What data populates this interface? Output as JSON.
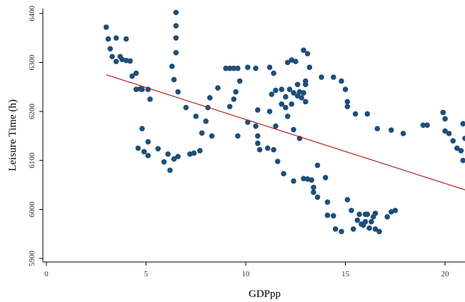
{
  "chart_data": {
    "type": "scatter",
    "title": "",
    "xlabel": "GDPpp",
    "ylabel": "Leisure Time (h)",
    "xlim": [
      0,
      21
    ],
    "ylim": [
      5900,
      6410
    ],
    "x_ticks": [
      0,
      5,
      10,
      15,
      20
    ],
    "y_ticks": [
      5900,
      6000,
      6100,
      6200,
      6300,
      6400
    ],
    "grid": false,
    "legend": "none",
    "colors": {
      "points": "#1f4e79",
      "fit_line": "#b22222",
      "axes": "#000000"
    },
    "fit_line": {
      "x": [
        3,
        21
      ],
      "y": [
        6275,
        6040
      ]
    },
    "points": [
      {
        "x": 3.0,
        "y": 6372
      },
      {
        "x": 3.1,
        "y": 6348
      },
      {
        "x": 3.2,
        "y": 6328
      },
      {
        "x": 3.3,
        "y": 6312
      },
      {
        "x": 3.5,
        "y": 6302
      },
      {
        "x": 3.5,
        "y": 6350
      },
      {
        "x": 3.7,
        "y": 6312
      },
      {
        "x": 3.8,
        "y": 6306
      },
      {
        "x": 4.0,
        "y": 6304
      },
      {
        "x": 4.0,
        "y": 6348
      },
      {
        "x": 4.2,
        "y": 6303
      },
      {
        "x": 4.3,
        "y": 6272
      },
      {
        "x": 4.5,
        "y": 6278
      },
      {
        "x": 4.5,
        "y": 6245
      },
      {
        "x": 4.7,
        "y": 6246
      },
      {
        "x": 4.8,
        "y": 6245
      },
      {
        "x": 5.1,
        "y": 6245
      },
      {
        "x": 5.2,
        "y": 6225
      },
      {
        "x": 4.6,
        "y": 6125
      },
      {
        "x": 4.8,
        "y": 6165
      },
      {
        "x": 4.9,
        "y": 6118
      },
      {
        "x": 5.1,
        "y": 6138
      },
      {
        "x": 5.1,
        "y": 6110
      },
      {
        "x": 5.6,
        "y": 6124
      },
      {
        "x": 5.9,
        "y": 6097
      },
      {
        "x": 6.1,
        "y": 6113
      },
      {
        "x": 6.2,
        "y": 6080
      },
      {
        "x": 6.4,
        "y": 6103
      },
      {
        "x": 6.6,
        "y": 6108
      },
      {
        "x": 7.2,
        "y": 6113
      },
      {
        "x": 7.4,
        "y": 6115
      },
      {
        "x": 7.7,
        "y": 6120
      },
      {
        "x": 6.3,
        "y": 6292
      },
      {
        "x": 6.4,
        "y": 6265
      },
      {
        "x": 6.5,
        "y": 6320
      },
      {
        "x": 6.5,
        "y": 6350
      },
      {
        "x": 6.5,
        "y": 6375
      },
      {
        "x": 6.5,
        "y": 6402
      },
      {
        "x": 6.6,
        "y": 6240
      },
      {
        "x": 7.0,
        "y": 6208
      },
      {
        "x": 7.5,
        "y": 6190
      },
      {
        "x": 7.8,
        "y": 6156
      },
      {
        "x": 8.0,
        "y": 6180
      },
      {
        "x": 8.1,
        "y": 6208
      },
      {
        "x": 8.2,
        "y": 6228
      },
      {
        "x": 8.3,
        "y": 6150
      },
      {
        "x": 8.6,
        "y": 6248
      },
      {
        "x": 9.0,
        "y": 6288
      },
      {
        "x": 9.2,
        "y": 6288
      },
      {
        "x": 9.2,
        "y": 6210
      },
      {
        "x": 9.4,
        "y": 6288
      },
      {
        "x": 9.4,
        "y": 6225
      },
      {
        "x": 9.5,
        "y": 6240
      },
      {
        "x": 9.6,
        "y": 6288
      },
      {
        "x": 9.6,
        "y": 6150
      },
      {
        "x": 9.7,
        "y": 6262
      },
      {
        "x": 10.1,
        "y": 6290
      },
      {
        "x": 10.1,
        "y": 6178
      },
      {
        "x": 10.5,
        "y": 6288
      },
      {
        "x": 10.5,
        "y": 6170
      },
      {
        "x": 10.6,
        "y": 6203
      },
      {
        "x": 10.6,
        "y": 6135
      },
      {
        "x": 10.6,
        "y": 6150
      },
      {
        "x": 10.7,
        "y": 6122
      },
      {
        "x": 11.1,
        "y": 6125
      },
      {
        "x": 11.2,
        "y": 6290
      },
      {
        "x": 11.2,
        "y": 6200
      },
      {
        "x": 11.3,
        "y": 6235
      },
      {
        "x": 11.4,
        "y": 6278
      },
      {
        "x": 11.4,
        "y": 6122
      },
      {
        "x": 11.5,
        "y": 6170
      },
      {
        "x": 11.5,
        "y": 6243
      },
      {
        "x": 11.6,
        "y": 6098
      },
      {
        "x": 11.8,
        "y": 6245
      },
      {
        "x": 11.8,
        "y": 6215
      },
      {
        "x": 11.9,
        "y": 6073
      },
      {
        "x": 12.0,
        "y": 6230
      },
      {
        "x": 12.0,
        "y": 6208
      },
      {
        "x": 12.1,
        "y": 6300
      },
      {
        "x": 12.1,
        "y": 6190
      },
      {
        "x": 12.2,
        "y": 6245
      },
      {
        "x": 12.3,
        "y": 6215
      },
      {
        "x": 12.3,
        "y": 6305
      },
      {
        "x": 12.4,
        "y": 6238
      },
      {
        "x": 12.4,
        "y": 6163
      },
      {
        "x": 12.4,
        "y": 6058
      },
      {
        "x": 12.5,
        "y": 6302
      },
      {
        "x": 12.6,
        "y": 6255
      },
      {
        "x": 12.6,
        "y": 6232
      },
      {
        "x": 12.7,
        "y": 6240
      },
      {
        "x": 12.7,
        "y": 6145
      },
      {
        "x": 12.8,
        "y": 6228
      },
      {
        "x": 12.9,
        "y": 6325
      },
      {
        "x": 12.9,
        "y": 6238
      },
      {
        "x": 12.9,
        "y": 6063
      },
      {
        "x": 13.0,
        "y": 6255
      },
      {
        "x": 13.0,
        "y": 6220
      },
      {
        "x": 13.0,
        "y": 6262
      },
      {
        "x": 13.1,
        "y": 6318
      },
      {
        "x": 13.1,
        "y": 6062
      },
      {
        "x": 13.2,
        "y": 6290
      },
      {
        "x": 13.3,
        "y": 6060
      },
      {
        "x": 13.4,
        "y": 6045
      },
      {
        "x": 13.4,
        "y": 6035
      },
      {
        "x": 13.6,
        "y": 6090
      },
      {
        "x": 13.6,
        "y": 6025
      },
      {
        "x": 13.8,
        "y": 6270
      },
      {
        "x": 14.0,
        "y": 6065
      },
      {
        "x": 14.1,
        "y": 5988
      },
      {
        "x": 14.1,
        "y": 6015
      },
      {
        "x": 14.4,
        "y": 6270
      },
      {
        "x": 14.4,
        "y": 5987
      },
      {
        "x": 14.5,
        "y": 5960
      },
      {
        "x": 14.8,
        "y": 6262
      },
      {
        "x": 14.8,
        "y": 5955
      },
      {
        "x": 15.0,
        "y": 6245
      },
      {
        "x": 15.1,
        "y": 6220
      },
      {
        "x": 15.1,
        "y": 6210
      },
      {
        "x": 15.1,
        "y": 6020
      },
      {
        "x": 15.3,
        "y": 5998
      },
      {
        "x": 15.4,
        "y": 5960
      },
      {
        "x": 15.5,
        "y": 6195
      },
      {
        "x": 15.6,
        "y": 5978
      },
      {
        "x": 15.7,
        "y": 5990
      },
      {
        "x": 15.8,
        "y": 5970
      },
      {
        "x": 15.9,
        "y": 5968
      },
      {
        "x": 16.0,
        "y": 5990
      },
      {
        "x": 16.0,
        "y": 5975
      },
      {
        "x": 16.1,
        "y": 6195
      },
      {
        "x": 16.1,
        "y": 5990
      },
      {
        "x": 16.2,
        "y": 5962
      },
      {
        "x": 16.3,
        "y": 5975
      },
      {
        "x": 16.4,
        "y": 5985
      },
      {
        "x": 16.5,
        "y": 5960
      },
      {
        "x": 16.5,
        "y": 5992
      },
      {
        "x": 16.6,
        "y": 6165
      },
      {
        "x": 16.7,
        "y": 5955
      },
      {
        "x": 17.1,
        "y": 5985
      },
      {
        "x": 17.3,
        "y": 6162
      },
      {
        "x": 17.3,
        "y": 5995
      },
      {
        "x": 17.5,
        "y": 5998
      },
      {
        "x": 17.9,
        "y": 6155
      },
      {
        "x": 18.9,
        "y": 6172
      },
      {
        "x": 19.1,
        "y": 6172
      },
      {
        "x": 19.9,
        "y": 6198
      },
      {
        "x": 20.0,
        "y": 6185
      },
      {
        "x": 20.0,
        "y": 6160
      },
      {
        "x": 20.2,
        "y": 6155
      },
      {
        "x": 20.4,
        "y": 6140
      },
      {
        "x": 20.6,
        "y": 6125
      },
      {
        "x": 20.8,
        "y": 6120
      },
      {
        "x": 20.9,
        "y": 6175
      },
      {
        "x": 20.9,
        "y": 6100
      },
      {
        "x": 21.0,
        "y": 6145
      }
    ]
  }
}
